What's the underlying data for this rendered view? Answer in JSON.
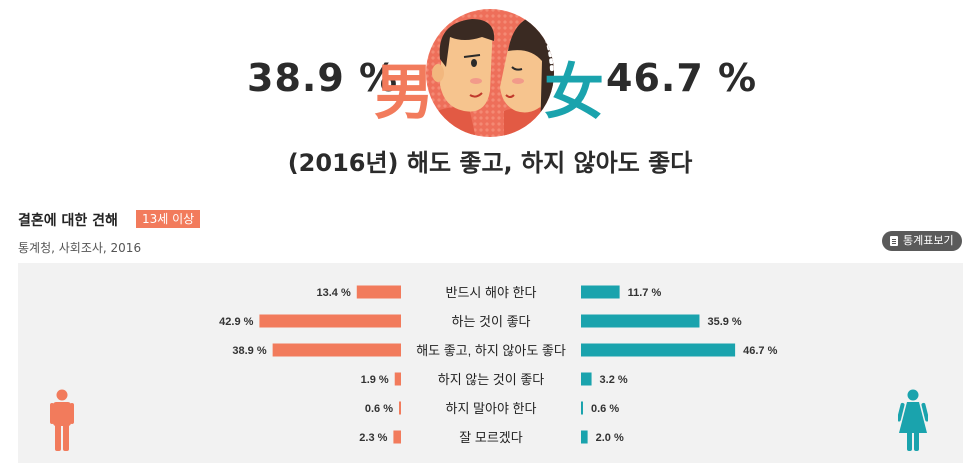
{
  "hero": {
    "male_pct": "38.9 %",
    "female_pct": "46.7 %",
    "male_kanji": "男",
    "female_kanji": "女",
    "subtitle": "(2016년) 해도 좋고, 하지 않아도 좋다"
  },
  "section": {
    "title": "결혼에 대한 견해",
    "badge": "13세 이상",
    "source": "통계청, 사회조사, 2016",
    "stat_button": "통계표보기"
  },
  "colors": {
    "male": "#f27b5c",
    "female": "#1aa3ad",
    "panel": "#f2f2f2"
  },
  "icons": {
    "male": "man-icon",
    "female": "woman-icon",
    "stat": "document-icon"
  },
  "chart_data": {
    "type": "bar",
    "categories": [
      "반드시 해야 한다",
      "하는 것이 좋다",
      "해도 좋고, 하지 않아도 좋다",
      "하지 않는 것이 좋다",
      "하지 말아야 한다",
      "잘 모르겠다"
    ],
    "series": [
      {
        "color": "#f27b5c",
        "values": [
          13.4,
          42.9,
          38.9,
          1.9,
          0.6,
          2.3
        ],
        "labels": [
          "13.4 %",
          "42.9 %",
          "38.9 %",
          "1.9 %",
          "0.6 %",
          "2.3 %"
        ]
      },
      {
        "color": "#1aa3ad",
        "values": [
          11.7,
          35.9,
          46.7,
          3.2,
          0.6,
          2.0
        ],
        "labels": [
          "11.7 %",
          "35.9 %",
          "46.7 %",
          "3.2 %",
          "0.6 %",
          "2.0 %"
        ]
      }
    ]
  }
}
